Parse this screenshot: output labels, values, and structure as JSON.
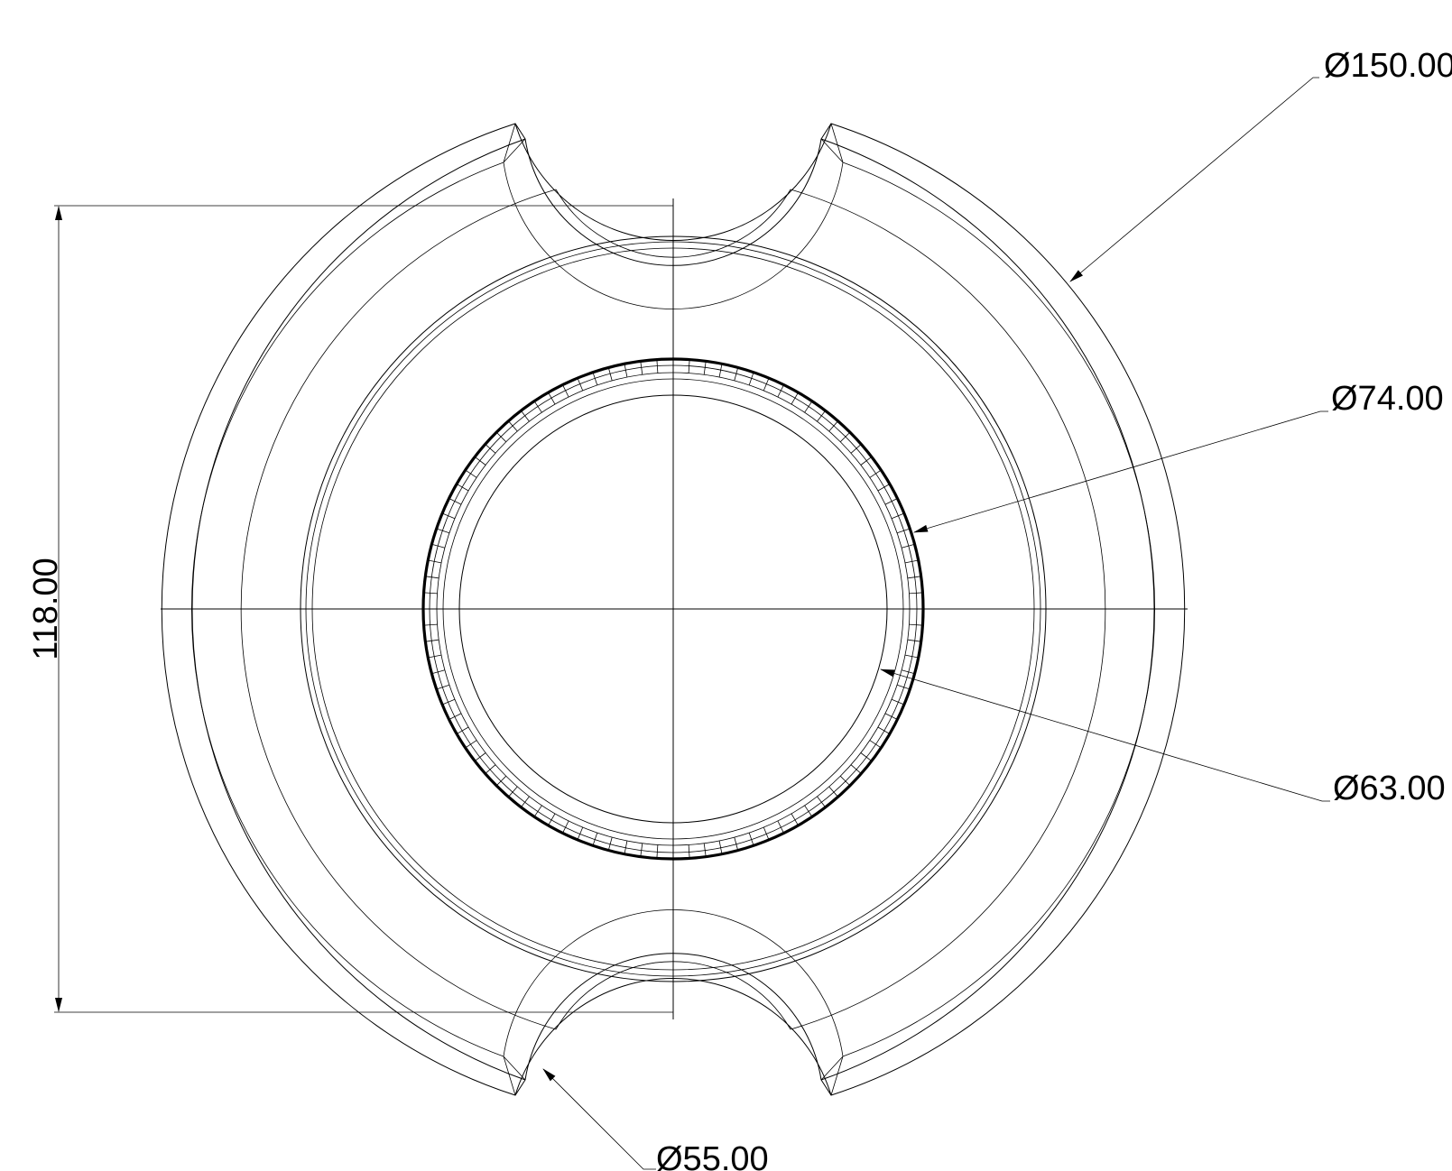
{
  "drawing": {
    "dimensions": [
      {
        "id": "outer-diameter",
        "label": "Ø150.00"
      },
      {
        "id": "bore-diameter-74",
        "label": "Ø74.00"
      },
      {
        "id": "bore-diameter-63",
        "label": "Ø63.00"
      },
      {
        "id": "notch-diameter",
        "label": "Ø55.00"
      },
      {
        "id": "height",
        "label": "118.00"
      }
    ]
  }
}
